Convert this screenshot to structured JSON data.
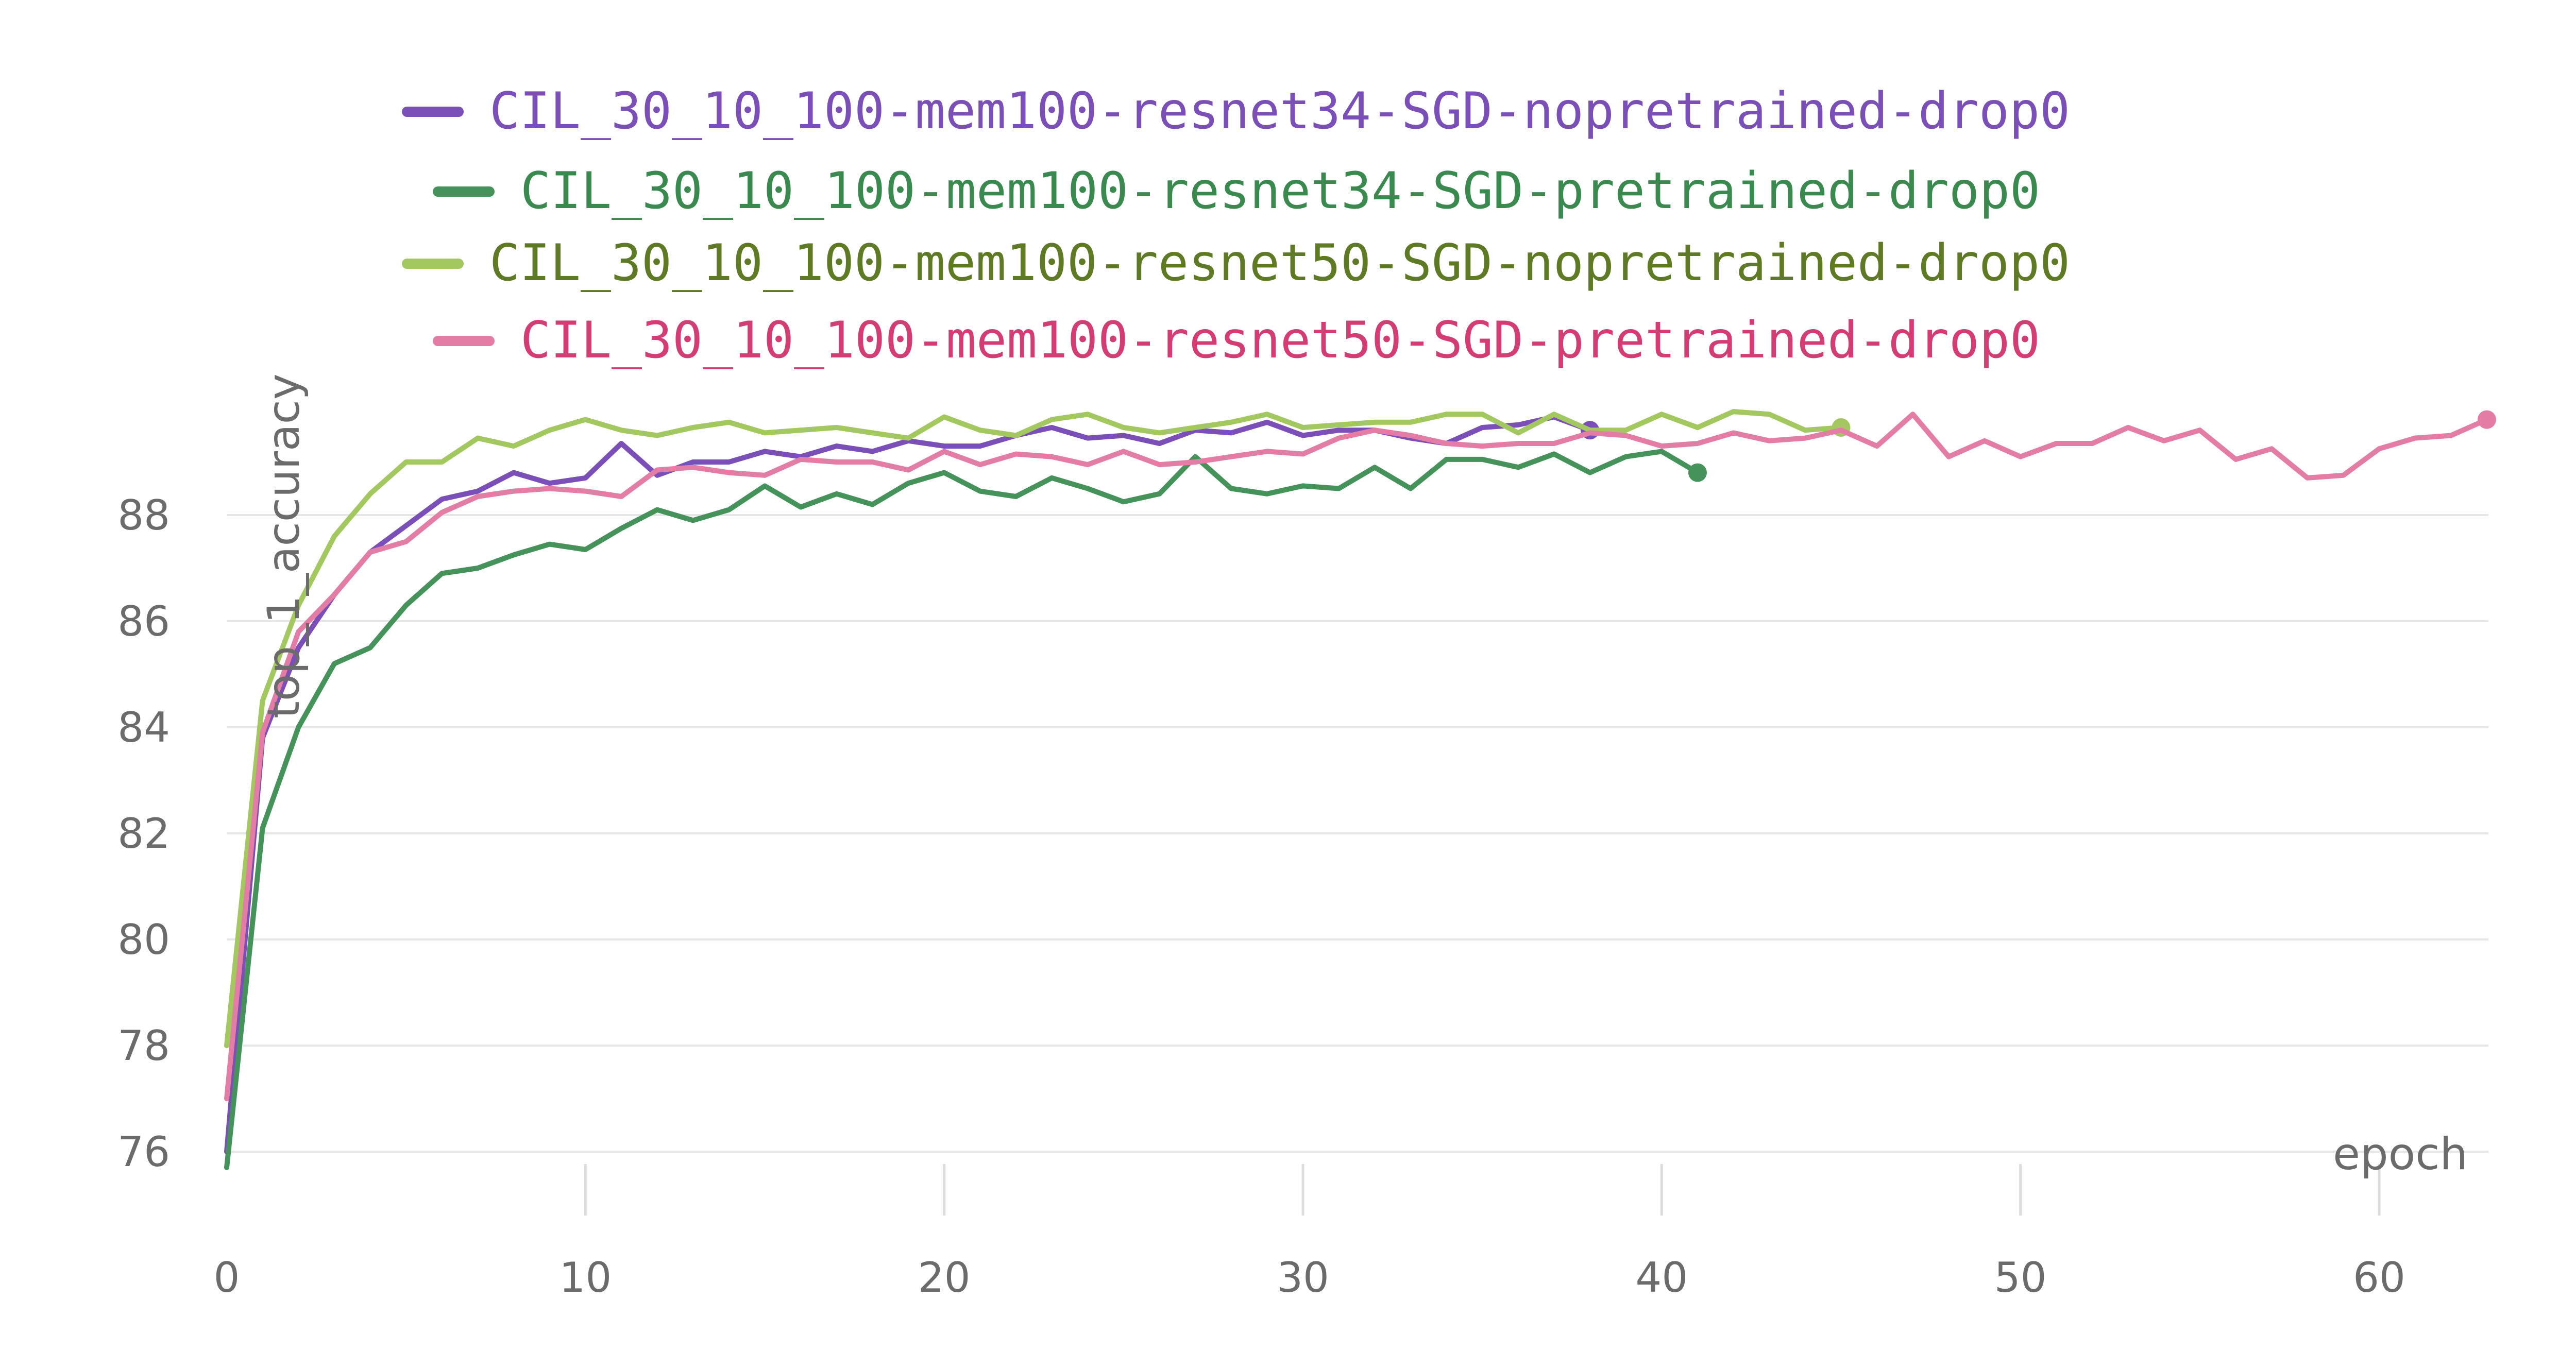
{
  "chart_data": {
    "type": "line",
    "xlabel": "epoch",
    "ylabel": "top_1_accuracy",
    "xlim": [
      0,
      64
    ],
    "ylim": [
      75.3,
      89.7
    ],
    "xticks": [
      0,
      10,
      20,
      30,
      40,
      50,
      60
    ],
    "yticks": [
      76,
      78,
      80,
      82,
      84,
      86,
      88
    ],
    "grid": "horizontal",
    "legend_position": "top-center",
    "series": [
      {
        "name": "CIL_30_10_100-mem100-resnet34-SGD-nopretrained-drop0",
        "color": "#7b4fb8",
        "text_color": "#7b4fb8",
        "x": [
          0,
          1,
          2,
          3,
          4,
          5,
          6,
          7,
          8,
          9,
          10,
          11,
          12,
          13,
          14,
          15,
          16,
          17,
          18,
          19,
          20,
          21,
          22,
          23,
          24,
          25,
          26,
          27,
          28,
          29,
          30,
          31,
          32,
          33,
          34,
          35,
          36,
          37,
          38
        ],
        "y": [
          76.0,
          83.8,
          85.5,
          86.5,
          87.3,
          87.8,
          88.3,
          88.45,
          88.8,
          88.6,
          88.7,
          89.35,
          88.75,
          89.0,
          89.0,
          89.2,
          89.1,
          89.3,
          89.2,
          89.4,
          89.3,
          89.3,
          89.5,
          89.65,
          89.45,
          89.5,
          89.35,
          89.6,
          89.55,
          89.75,
          89.5,
          89.6,
          89.6,
          89.45,
          89.35,
          89.65,
          89.7,
          89.85,
          89.6
        ]
      },
      {
        "name": "CIL_30_10_100-mem100-resnet34-SGD-pretrained-drop0",
        "color": "#45925a",
        "text_color": "#3a8a50",
        "x": [
          0,
          1,
          2,
          3,
          4,
          5,
          6,
          7,
          8,
          9,
          10,
          11,
          12,
          13,
          14,
          15,
          16,
          17,
          18,
          19,
          20,
          21,
          22,
          23,
          24,
          25,
          26,
          27,
          28,
          29,
          30,
          31,
          32,
          33,
          34,
          35,
          36,
          37,
          38,
          39,
          40,
          41
        ],
        "y": [
          75.7,
          82.1,
          84.0,
          85.2,
          85.5,
          86.3,
          86.9,
          87.0,
          87.25,
          87.45,
          87.35,
          87.75,
          88.1,
          87.9,
          88.1,
          88.55,
          88.15,
          88.4,
          88.2,
          88.6,
          88.8,
          88.45,
          88.35,
          88.7,
          88.5,
          88.25,
          88.4,
          89.1,
          88.5,
          88.4,
          88.55,
          88.5,
          88.9,
          88.5,
          89.05,
          89.05,
          88.9,
          89.15,
          88.8,
          89.1,
          89.2,
          88.8
        ]
      },
      {
        "name": "CIL_30_10_100-mem100-resnet50-SGD-nopretrained-drop0",
        "color": "#a3c85f",
        "text_color": "#5f7a24",
        "x": [
          0,
          1,
          2,
          3,
          4,
          5,
          6,
          7,
          8,
          9,
          10,
          11,
          12,
          13,
          14,
          15,
          16,
          17,
          18,
          19,
          20,
          21,
          22,
          23,
          24,
          25,
          26,
          27,
          28,
          29,
          30,
          31,
          32,
          33,
          34,
          35,
          36,
          37,
          38,
          39,
          40,
          41,
          42,
          43,
          44,
          45
        ],
        "y": [
          78.0,
          84.5,
          86.3,
          87.6,
          88.4,
          89.0,
          89.0,
          89.45,
          89.3,
          89.6,
          89.8,
          89.6,
          89.5,
          89.65,
          89.75,
          89.55,
          89.6,
          89.65,
          89.55,
          89.45,
          89.85,
          89.6,
          89.5,
          89.8,
          89.9,
          89.65,
          89.55,
          89.65,
          89.75,
          89.9,
          89.65,
          89.7,
          89.75,
          89.75,
          89.9,
          89.9,
          89.55,
          89.9,
          89.6,
          89.6,
          89.9,
          89.65,
          89.95,
          89.9,
          89.6,
          89.65
        ]
      },
      {
        "name": "CIL_30_10_100-mem100-resnet50-SGD-pretrained-drop0",
        "color": "#e37da6",
        "text_color": "#d43d74",
        "x": [
          0,
          1,
          2,
          3,
          4,
          5,
          6,
          7,
          8,
          9,
          10,
          11,
          12,
          13,
          14,
          15,
          16,
          17,
          18,
          19,
          20,
          21,
          22,
          23,
          24,
          25,
          26,
          27,
          28,
          29,
          30,
          31,
          32,
          33,
          34,
          35,
          36,
          37,
          38,
          39,
          40,
          41,
          42,
          43,
          44,
          45,
          46,
          47,
          48,
          49,
          50,
          51,
          52,
          53,
          54,
          55,
          56,
          57,
          58,
          59,
          60,
          61,
          62,
          63
        ],
        "y": [
          77.0,
          83.9,
          85.8,
          86.5,
          87.3,
          87.5,
          88.05,
          88.35,
          88.45,
          88.5,
          88.45,
          88.35,
          88.85,
          88.9,
          88.8,
          88.75,
          89.05,
          89.0,
          89.0,
          88.85,
          89.2,
          88.95,
          89.15,
          89.1,
          88.95,
          89.2,
          88.95,
          89.0,
          89.1,
          89.2,
          89.15,
          89.45,
          89.6,
          89.5,
          89.35,
          89.3,
          89.35,
          89.35,
          89.55,
          89.5,
          89.3,
          89.35,
          89.55,
          89.4,
          89.45,
          89.6,
          89.3,
          89.9,
          89.1,
          89.4,
          89.1,
          89.35,
          89.35,
          89.65,
          89.4,
          89.6,
          89.05,
          89.25,
          88.7,
          88.75,
          89.25,
          89.45,
          89.5,
          89.8
        ]
      }
    ]
  }
}
